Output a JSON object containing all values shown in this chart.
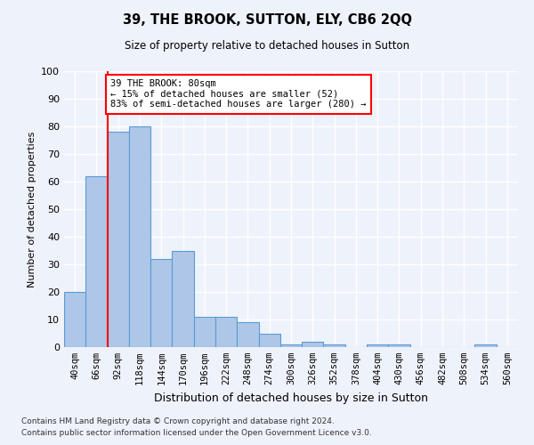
{
  "title": "39, THE BROOK, SUTTON, ELY, CB6 2QQ",
  "subtitle": "Size of property relative to detached houses in Sutton",
  "xlabel": "Distribution of detached houses by size in Sutton",
  "ylabel": "Number of detached properties",
  "categories": [
    "40sqm",
    "66sqm",
    "92sqm",
    "118sqm",
    "144sqm",
    "170sqm",
    "196sqm",
    "222sqm",
    "248sqm",
    "274sqm",
    "300sqm",
    "326sqm",
    "352sqm",
    "378sqm",
    "404sqm",
    "430sqm",
    "456sqm",
    "482sqm",
    "508sqm",
    "534sqm",
    "560sqm"
  ],
  "values": [
    20,
    62,
    78,
    80,
    32,
    35,
    11,
    11,
    9,
    5,
    1,
    2,
    1,
    0,
    1,
    1,
    0,
    0,
    0,
    1,
    0
  ],
  "bar_color": "#aec6e8",
  "bar_edge_color": "#5b9bd5",
  "annotation_text_line1": "39 THE BROOK: 80sqm",
  "annotation_text_line2": "← 15% of detached houses are smaller (52)",
  "annotation_text_line3": "83% of semi-detached houses are larger (280) →",
  "annotation_box_color": "white",
  "annotation_box_edge_color": "red",
  "vline_x": 1.5,
  "vline_color": "red",
  "ylim": [
    0,
    100
  ],
  "footer_line1": "Contains HM Land Registry data © Crown copyright and database right 2024.",
  "footer_line2": "Contains public sector information licensed under the Open Government Licence v3.0.",
  "background_color": "#eef2fb",
  "grid_color": "white"
}
